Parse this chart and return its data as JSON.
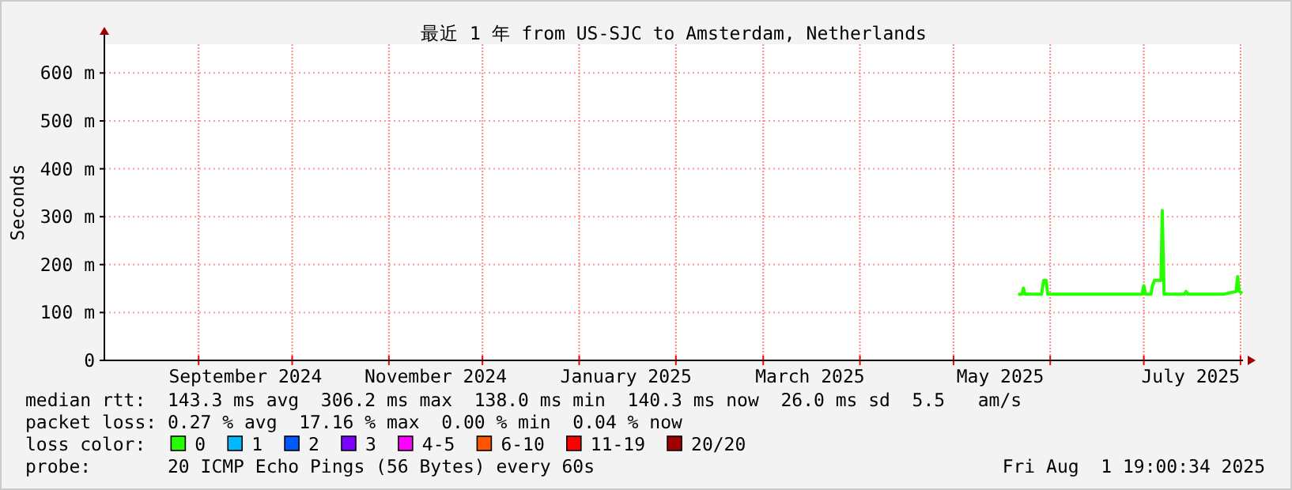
{
  "chart_data": {
    "type": "line",
    "title": "最近 1 年 from US-SJC to Amsterdam, Netherlands",
    "ylabel": "Seconds",
    "x": [
      "2025-05-21T17:00",
      "2025-05-22T23:00",
      "2025-05-23T10:00",
      "2025-05-23T22:00",
      "2025-05-29T05:00",
      "2025-05-29T22:00",
      "2025-05-30T17:00",
      "2025-05-31T05:00",
      "2025-06-30T10:00",
      "2025-07-01T00:00",
      "2025-07-01T14:00",
      "2025-07-03T07:00",
      "2025-07-03T19:00",
      "2025-07-04T10:00",
      "2025-07-06T12:00",
      "2025-07-06T22:00",
      "2025-07-07T12:00",
      "2025-07-14T02:00",
      "2025-07-14T12:00",
      "2025-07-15T02:00",
      "2025-07-26T12:00",
      "2025-07-30T14:00",
      "2025-07-31T02:00",
      "2025-07-31T14:00",
      "2025-08-01T14:00"
    ],
    "series": [
      {
        "name": "0",
        "color": "#26ff00",
        "values": [
          138,
          138,
          151,
          138,
          138,
          167,
          167,
          138,
          138,
          156,
          138,
          138,
          156,
          167,
          167,
          313,
          138,
          138,
          144,
          138,
          138,
          144,
          175,
          144,
          140
        ]
      },
      {
        "name": "1",
        "color": "#00b8ff",
        "values": [
          null,
          null,
          null,
          null,
          null,
          null,
          null,
          null,
          null,
          null,
          null,
          null,
          null,
          null,
          null,
          null,
          null,
          null,
          null,
          null,
          null,
          null,
          null,
          null,
          null
        ]
      },
      {
        "name": "2",
        "color": "#0059ff",
        "values": [
          null,
          null,
          null,
          null,
          null,
          null,
          null,
          null,
          null,
          null,
          null,
          null,
          null,
          null,
          null,
          null,
          null,
          null,
          null,
          null,
          null,
          null,
          null,
          null,
          null
        ]
      },
      {
        "name": "3",
        "color": "#7e00ff",
        "values": [
          null,
          null,
          null,
          null,
          null,
          null,
          null,
          null,
          null,
          null,
          null,
          null,
          null,
          null,
          null,
          null,
          null,
          null,
          null,
          null,
          null,
          null,
          null,
          null,
          null
        ]
      },
      {
        "name": "4-5",
        "color": "#ff00ff",
        "values": [
          null,
          null,
          null,
          null,
          null,
          null,
          null,
          null,
          null,
          null,
          null,
          null,
          null,
          null,
          null,
          null,
          null,
          null,
          null,
          null,
          null,
          null,
          null,
          null,
          null
        ]
      },
      {
        "name": "6-10",
        "color": "#ff5500",
        "values": [
          null,
          null,
          null,
          null,
          null,
          null,
          null,
          null,
          null,
          null,
          null,
          null,
          null,
          null,
          null,
          null,
          null,
          null,
          null,
          null,
          null,
          null,
          null,
          null,
          null
        ]
      },
      {
        "name": "11-19",
        "color": "#ff0000",
        "values": [
          null,
          null,
          null,
          null,
          null,
          null,
          null,
          null,
          null,
          null,
          null,
          null,
          null,
          null,
          null,
          null,
          null,
          null,
          null,
          null,
          null,
          null,
          null,
          null,
          null
        ]
      },
      {
        "name": "20/20",
        "color": "#a10000",
        "values": [
          null,
          null,
          null,
          null,
          null,
          null,
          null,
          null,
          null,
          null,
          null,
          null,
          null,
          null,
          null,
          null,
          null,
          null,
          null,
          null,
          null,
          null,
          null,
          null,
          null
        ]
      }
    ],
    "legend": "bottom",
    "legend_title": "loss color:",
    "xlim": [
      "2024-08-01T19:00",
      "2025-08-01T19:00"
    ],
    "xticks": [
      {
        "value": "2024-09-01",
        "label": null
      },
      {
        "value": "2024-09-16",
        "label": "September 2024"
      },
      {
        "value": "2024-10-01",
        "label": null
      },
      {
        "value": "2024-11-01",
        "label": null
      },
      {
        "value": "2024-11-16",
        "label": "November 2024"
      },
      {
        "value": "2024-12-01",
        "label": null
      },
      {
        "value": "2025-01-01",
        "label": null
      },
      {
        "value": "2025-01-16",
        "label": "January 2025"
      },
      {
        "value": "2025-02-01",
        "label": null
      },
      {
        "value": "2025-03-01",
        "label": null
      },
      {
        "value": "2025-03-16",
        "label": "March 2025"
      },
      {
        "value": "2025-04-01",
        "label": null
      },
      {
        "value": "2025-05-01",
        "label": null
      },
      {
        "value": "2025-05-16",
        "label": "May 2025"
      },
      {
        "value": "2025-06-01",
        "label": null
      },
      {
        "value": "2025-07-01",
        "label": null
      },
      {
        "value": "2025-07-16",
        "label": "July 2025"
      },
      {
        "value": "2025-08-01",
        "label": null
      }
    ],
    "ylim": [
      0,
      660
    ],
    "yticks": [
      0,
      {
        "value": 100,
        "label": "100 m"
      },
      {
        "value": 200,
        "label": "200 m"
      },
      {
        "value": 300,
        "label": "300 m"
      },
      {
        "value": 400,
        "label": "400 m"
      },
      {
        "value": 500,
        "label": "500 m"
      },
      {
        "value": 600,
        "label": "600 m"
      }
    ],
    "grid": true,
    "annotations": [
      "median rtt:  143.3 ms avg  306.2 ms max  138.0 ms min  140.3 ms now  26.0 ms sd  5.5   am/s",
      "packet loss: 0.27 % avg  17.16 % max  0.00 % min  0.04 % now",
      "probe:       20 ICMP Echo Pings (56 Bytes) every 60s",
      "Fri Aug  1 19:00:34 2025"
    ]
  }
}
